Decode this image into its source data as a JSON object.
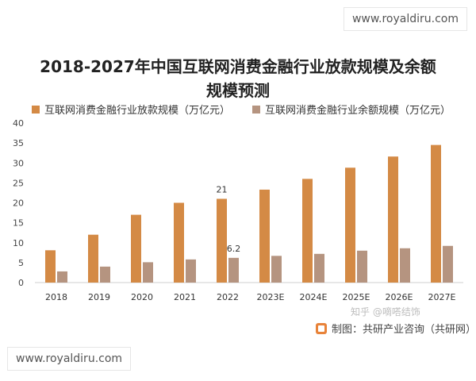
{
  "watermark_top": "www.royaldiru.com",
  "watermark_bottom": "www.royaldiru.com",
  "zhihu_mark": "知乎 @嘀嗒结饰",
  "source": "制图：共研产业咨询（共研网）",
  "chart_data": {
    "type": "bar",
    "title_line1": "2018-2027年中国互联网消费金融行业放款规模及余额",
    "title_line2": "规模预测",
    "categories": [
      "2018",
      "2019",
      "2020",
      "2021",
      "2022",
      "2023E",
      "2024E",
      "2025E",
      "2026E",
      "2027E"
    ],
    "series": [
      {
        "name": "互联网消费金融行业放款规模（万亿元）",
        "color": "#d48a45",
        "values": [
          8.1,
          12.0,
          17.0,
          20.0,
          21.0,
          23.3,
          26.0,
          28.8,
          31.6,
          34.5
        ]
      },
      {
        "name": "互联网消费金融行业余额规模（万亿元）",
        "color": "#b59480",
        "values": [
          2.8,
          4.0,
          5.1,
          5.8,
          6.2,
          6.7,
          7.2,
          8.0,
          8.6,
          9.2
        ]
      }
    ],
    "data_labels": [
      {
        "series": 0,
        "index": 4,
        "text": "21"
      },
      {
        "series": 1,
        "index": 4,
        "text": "6.2"
      }
    ],
    "ylim": [
      0,
      40
    ],
    "yticks": [
      "0",
      "5",
      "10",
      "15",
      "20",
      "25",
      "30",
      "35",
      "40"
    ],
    "grid": false,
    "legend": "top"
  }
}
